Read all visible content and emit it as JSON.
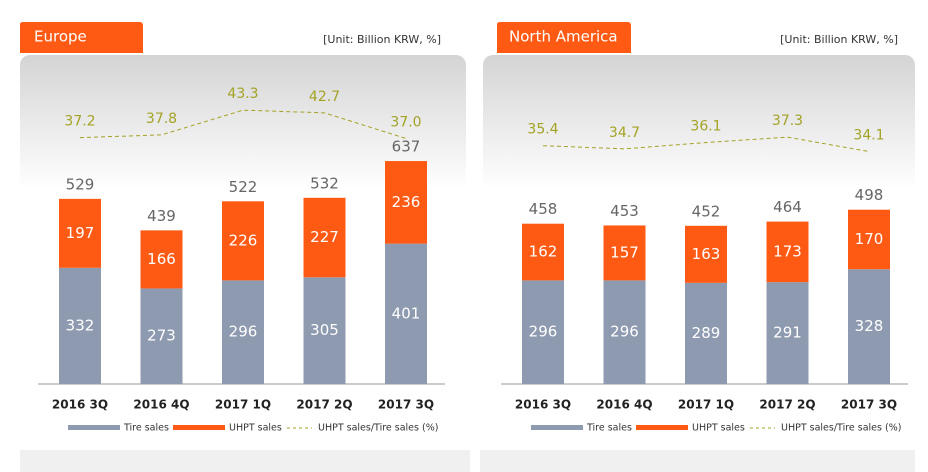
{
  "chart_data": [
    {
      "type": "bar",
      "stacked": true,
      "title": "Europe",
      "subtitle": "[Unit: Billion KRW, %]",
      "categories": [
        "2016 3Q",
        "2016 4Q",
        "2017 1Q",
        "2017 2Q",
        "2017 3Q"
      ],
      "series": [
        {
          "name": "Tire sales",
          "color": "#8e9ab0",
          "values": [
            332,
            273,
            296,
            305,
            401
          ]
        },
        {
          "name": "UHPT sales",
          "color": "#ff5a14",
          "values": [
            197,
            166,
            226,
            227,
            236
          ]
        },
        {
          "name": "UHPT sales/Tire sales (%)",
          "type": "line",
          "color": "#a3a324",
          "values": [
            37.2,
            37.8,
            43.3,
            42.7,
            37.0
          ],
          "value_labels": [
            "37.2",
            "37.8",
            "43.3",
            "42.7",
            "37.0"
          ]
        }
      ],
      "totals": [
        529,
        439,
        522,
        532,
        637
      ]
    },
    {
      "type": "bar",
      "stacked": true,
      "title": "North America",
      "subtitle": "[Unit: Billion KRW, %]",
      "categories": [
        "2016 3Q",
        "2016 4Q",
        "2017 1Q",
        "2017 2Q",
        "2017 3Q"
      ],
      "series": [
        {
          "name": "Tire sales",
          "color": "#8e9ab0",
          "values": [
            296,
            296,
            289,
            291,
            328
          ]
        },
        {
          "name": "UHPT sales",
          "color": "#ff5a14",
          "values": [
            162,
            157,
            163,
            173,
            170
          ]
        },
        {
          "name": "UHPT sales/Tire sales (%)",
          "type": "line",
          "color": "#a3a324",
          "values": [
            35.4,
            34.7,
            36.1,
            37.3,
            34.1
          ],
          "value_labels": [
            "35.4",
            "34.7",
            "36.1",
            "37.3",
            "34.1"
          ]
        }
      ],
      "totals": [
        458,
        453,
        452,
        464,
        498
      ]
    }
  ]
}
